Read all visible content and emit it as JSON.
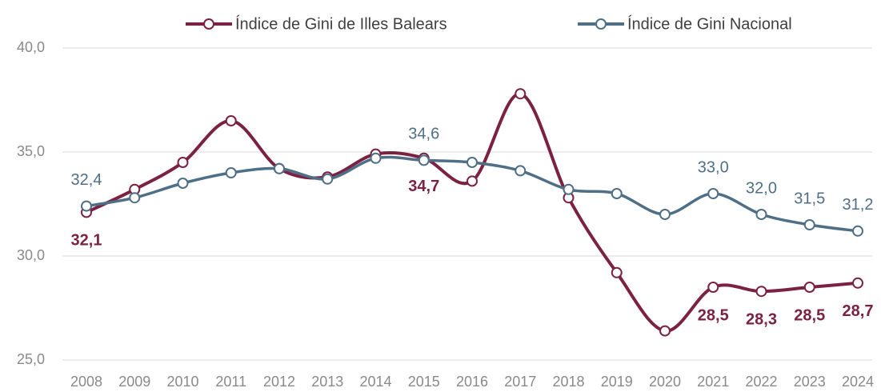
{
  "chart_data": {
    "type": "line",
    "categories": [
      "2008",
      "2009",
      "2010",
      "2011",
      "2012",
      "2013",
      "2014",
      "2015",
      "2016",
      "2017",
      "2018",
      "2019",
      "2020",
      "2021",
      "2022",
      "2023",
      "2024"
    ],
    "series": [
      {
        "name": "Índice de Gini de Illes Balears",
        "color": "#7b2141",
        "values": [
          32.1,
          33.2,
          34.5,
          36.5,
          34.2,
          33.8,
          34.9,
          34.7,
          33.6,
          37.8,
          32.8,
          29.2,
          26.4,
          28.5,
          28.3,
          28.5,
          28.7
        ],
        "value_labels": [
          "32,1",
          null,
          null,
          null,
          null,
          null,
          null,
          "34,7",
          null,
          null,
          null,
          null,
          null,
          "28,5",
          "28,3",
          "28,5",
          "28,7"
        ]
      },
      {
        "name": "Índice de Gini Nacional",
        "color": "#4f6f87",
        "values": [
          32.4,
          32.8,
          33.5,
          34.0,
          34.2,
          33.7,
          34.7,
          34.6,
          34.5,
          34.1,
          33.2,
          33.0,
          32.0,
          33.0,
          32.0,
          31.5,
          31.2
        ],
        "value_labels": [
          "32,4",
          null,
          null,
          null,
          null,
          null,
          null,
          "34,6",
          null,
          null,
          null,
          null,
          null,
          "33,0",
          "32,0",
          "31,5",
          "31,2"
        ]
      }
    ],
    "ylim": [
      25,
      40
    ],
    "yticks": [
      {
        "value": 25,
        "label": "25,0"
      },
      {
        "value": 30,
        "label": "30,0"
      },
      {
        "value": 35,
        "label": "35,0"
      },
      {
        "value": 40,
        "label": "40,0"
      }
    ],
    "grid": true,
    "legend": "top"
  }
}
